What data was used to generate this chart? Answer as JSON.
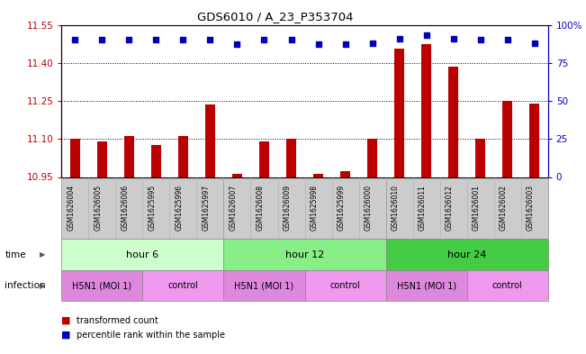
{
  "title": "GDS6010 / A_23_P353704",
  "samples": [
    "GSM1626004",
    "GSM1626005",
    "GSM1626006",
    "GSM1625995",
    "GSM1625996",
    "GSM1625997",
    "GSM1626007",
    "GSM1626008",
    "GSM1626009",
    "GSM1625998",
    "GSM1625999",
    "GSM1626000",
    "GSM1626010",
    "GSM1626011",
    "GSM1626012",
    "GSM1626001",
    "GSM1626002",
    "GSM1626003"
  ],
  "transformed_counts": [
    11.1,
    11.09,
    11.11,
    11.075,
    11.11,
    11.235,
    10.962,
    11.09,
    11.1,
    10.962,
    10.972,
    11.1,
    11.455,
    11.475,
    11.385,
    11.1,
    11.25,
    11.24
  ],
  "percentile_ranks": [
    90,
    90,
    90,
    90,
    90,
    90,
    87,
    90,
    90,
    87,
    87,
    88,
    91,
    93,
    91,
    90,
    90,
    88
  ],
  "ymin": 10.95,
  "ymax": 11.55,
  "yticks_left": [
    10.95,
    11.1,
    11.25,
    11.4,
    11.55
  ],
  "yticks_right": [
    0,
    25,
    50,
    75,
    100
  ],
  "bar_color": "#bb0000",
  "dot_color": "#0000bb",
  "time_labels": [
    "hour 6",
    "hour 12",
    "hour 24"
  ],
  "time_starts": [
    0,
    6,
    12
  ],
  "time_ends": [
    6,
    12,
    18
  ],
  "time_colors": [
    "#ccffcc",
    "#88ee88",
    "#44cc44"
  ],
  "infection_labels": [
    "H5N1 (MOI 1)",
    "control",
    "H5N1 (MOI 1)",
    "control",
    "H5N1 (MOI 1)",
    "control"
  ],
  "infection_starts": [
    0,
    3,
    6,
    9,
    12,
    15
  ],
  "infection_ends": [
    3,
    6,
    9,
    12,
    15,
    18
  ],
  "infection_colors_h5n1": "#dd88dd",
  "infection_colors_ctrl": "#ee99ee",
  "n_samples": 18
}
